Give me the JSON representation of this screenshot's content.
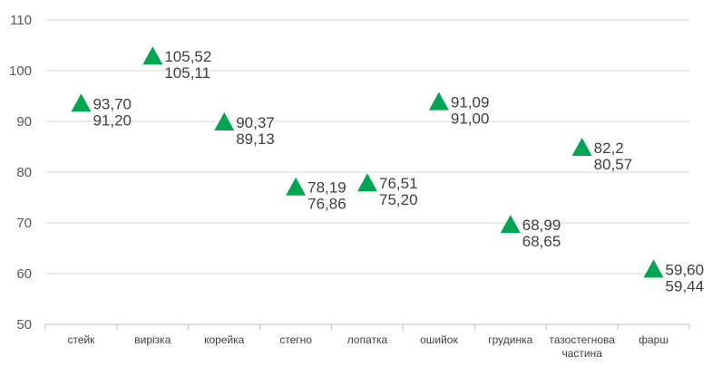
{
  "chart_data": {
    "type": "scatter",
    "title": "",
    "xlabel": "",
    "ylabel": "",
    "ylim": [
      50,
      110
    ],
    "yticks": [
      "50",
      "60",
      "70",
      "80",
      "90",
      "100",
      "110"
    ],
    "grid": true,
    "legend": "none",
    "marker": "triangle",
    "marker_color": "#00A651",
    "categories": [
      [
        "стейк"
      ],
      [
        "вирізка"
      ],
      [
        "корейка"
      ],
      [
        "стегно"
      ],
      [
        "лопатка"
      ],
      [
        "ошийок"
      ],
      [
        "грудинка"
      ],
      [
        "тазостегнова",
        "частина"
      ],
      [
        "фарш"
      ]
    ],
    "values": [
      93.7,
      103.0,
      90.0,
      77.19,
      78.0,
      94.0,
      69.8,
      85.0,
      61.0
    ],
    "data_labels": [
      [
        "93,70",
        "91,20"
      ],
      [
        "105,52",
        "105,11"
      ],
      [
        "90,37",
        "89,13"
      ],
      [
        "78,19",
        "76,86"
      ],
      [
        "76,51",
        "75,20"
      ],
      [
        "91,09",
        "91,00"
      ],
      [
        "68,99",
        "68,65"
      ],
      [
        "82,2",
        "80,57"
      ],
      [
        "59,60",
        "59,44"
      ]
    ]
  }
}
